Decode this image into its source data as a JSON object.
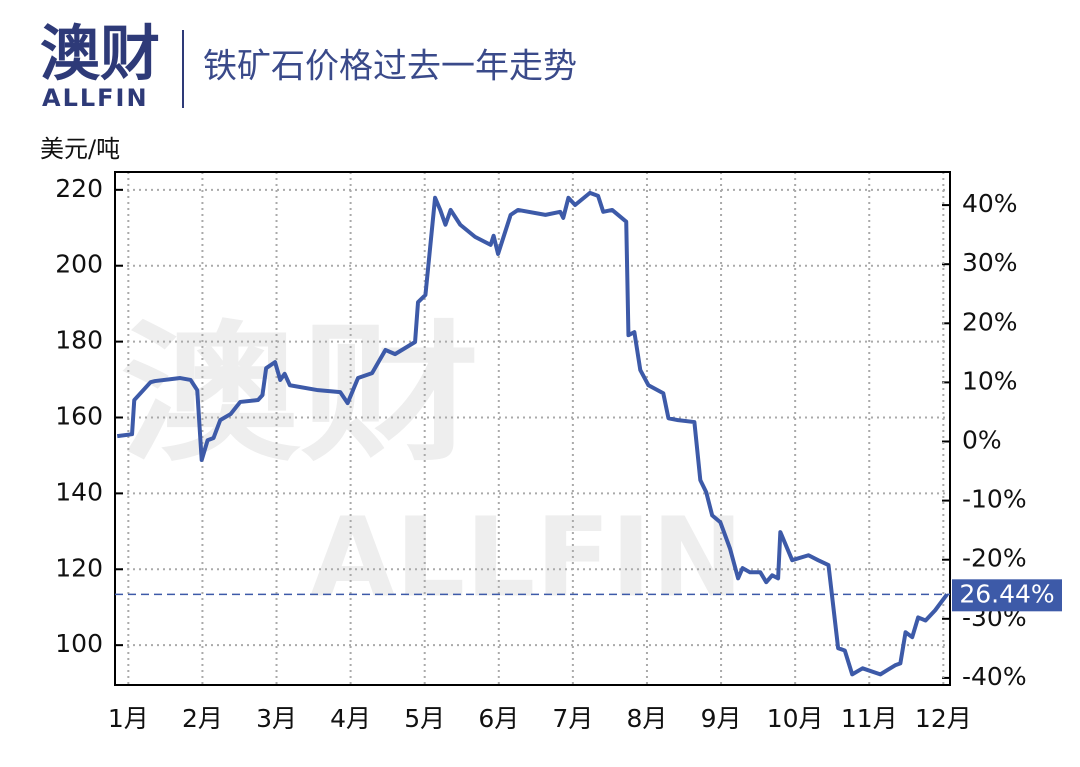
{
  "logo": {
    "name": "澳财",
    "sub": "ALLFIN"
  },
  "chart_data": {
    "type": "line",
    "title": "铁矿石价格过去一年走势",
    "y_label": "美元/吨",
    "annotation": "26.44%",
    "x": [
      0.85,
      1.05,
      1.08,
      1.3,
      1.36,
      1.7,
      1.84,
      1.93,
      1.99,
      2.07,
      2.15,
      2.24,
      2.38,
      2.51,
      2.75,
      2.81,
      2.86,
      2.98,
      3.05,
      3.11,
      3.18,
      3.56,
      3.86,
      3.96,
      4.1,
      4.29,
      4.47,
      4.6,
      4.87,
      4.91,
      5.01,
      5.14,
      5.21,
      5.28,
      5.35,
      5.48,
      5.68,
      5.89,
      5.93,
      5.99,
      6.16,
      6.26,
      6.63,
      6.83,
      6.87,
      6.94,
      7.03,
      7.23,
      7.34,
      7.41,
      7.53,
      7.72,
      7.75,
      7.83,
      7.91,
      8.02,
      8.22,
      8.29,
      8.42,
      8.64,
      8.72,
      8.8,
      8.88,
      8.99,
      9.12,
      9.23,
      9.29,
      9.39,
      9.53,
      9.61,
      9.69,
      9.77,
      9.8,
      9.96,
      10.18,
      10.31,
      10.45,
      10.58,
      10.67,
      10.77,
      10.91,
      11.15,
      11.35,
      11.42,
      11.49,
      11.58,
      11.66,
      11.76,
      11.89,
      12.05
    ],
    "series": [
      {
        "name": "铁矿石价格",
        "color": "#3d5aa8",
        "values": [
          155.1,
          155.6,
          164.6,
          169.3,
          169.6,
          170.4,
          169.9,
          167.2,
          148.8,
          154.0,
          154.6,
          159.3,
          160.9,
          164.1,
          164.6,
          165.9,
          173.0,
          174.6,
          169.9,
          171.5,
          168.5,
          167.2,
          166.7,
          163.8,
          170.4,
          171.7,
          177.8,
          176.7,
          179.9,
          190.4,
          192.3,
          217.9,
          214.7,
          210.8,
          214.7,
          210.8,
          207.6,
          205.5,
          207.9,
          203.1,
          213.4,
          214.7,
          213.4,
          214.2,
          212.6,
          217.9,
          216.0,
          219.2,
          218.4,
          214.2,
          214.7,
          211.6,
          181.7,
          182.5,
          172.5,
          168.5,
          166.4,
          159.8,
          159.3,
          158.8,
          143.5,
          140.3,
          134.2,
          132.4,
          125.5,
          117.6,
          120.3,
          119.2,
          119.2,
          116.6,
          118.4,
          117.6,
          129.8,
          122.4,
          123.7,
          122.4,
          121.1,
          99.2,
          98.6,
          92.3,
          93.9,
          92.3,
          94.7,
          95.2,
          103.4,
          102.1,
          107.3,
          106.5,
          109.2,
          113.4
        ]
      }
    ],
    "xlim": [
      0.82,
      12.09
    ],
    "xticks": [
      {
        "value": 1,
        "label": "1月"
      },
      {
        "value": 2,
        "label": "2月"
      },
      {
        "value": 3,
        "label": "3月"
      },
      {
        "value": 4,
        "label": "4月"
      },
      {
        "value": 5,
        "label": "5月"
      },
      {
        "value": 6,
        "label": "6月"
      },
      {
        "value": 7,
        "label": "7月"
      },
      {
        "value": 8,
        "label": "8月"
      },
      {
        "value": 9,
        "label": "9月"
      },
      {
        "value": 10,
        "label": "10月"
      },
      {
        "value": 11,
        "label": "11月"
      },
      {
        "value": 12,
        "label": "12月"
      }
    ],
    "ylim": [
      89.5,
      224.7
    ],
    "yticks": [
      100,
      120,
      140,
      160,
      180,
      200,
      220
    ],
    "y2lim": [
      -41.2,
      45.6
    ],
    "y2ticks": [
      {
        "value": -40,
        "label": "-40%"
      },
      {
        "value": -30,
        "label": "-30%"
      },
      {
        "value": -20,
        "label": "-20%"
      },
      {
        "value": -10,
        "label": "-10%"
      },
      {
        "value": 0,
        "label": "0%"
      },
      {
        "value": 10,
        "label": "10%"
      },
      {
        "value": 20,
        "label": "20%"
      },
      {
        "value": 30,
        "label": "30%"
      },
      {
        "value": 40,
        "label": "40%"
      }
    ],
    "grid": true
  }
}
